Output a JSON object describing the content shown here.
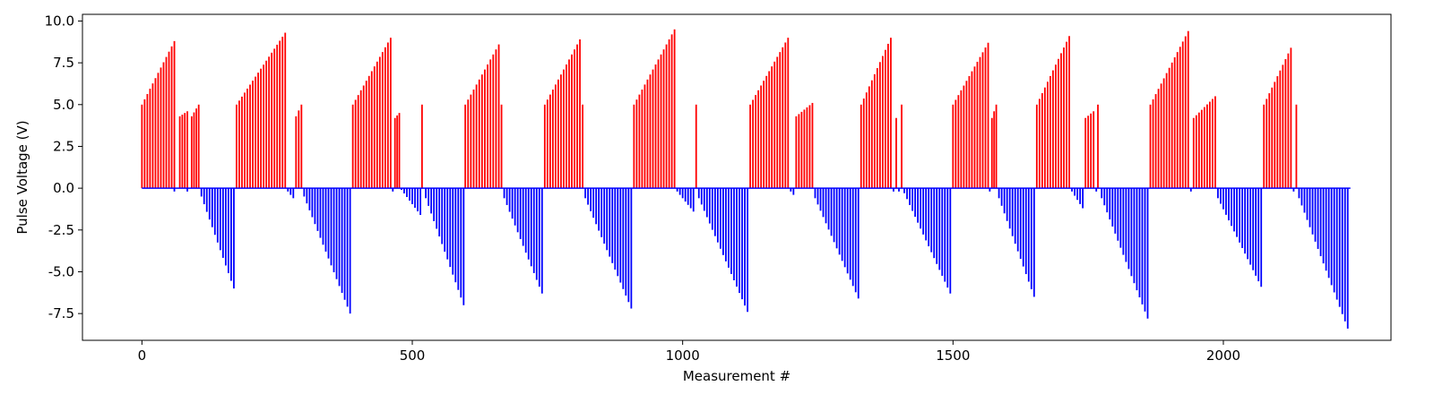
{
  "chart_data": {
    "type": "bar",
    "xlabel": "Measurement #",
    "ylabel": "Pulse Voltage (V)",
    "xlim": [
      -110,
      2310
    ],
    "ylim": [
      -9.1,
      10.4
    ],
    "xticks": [
      0,
      500,
      1000,
      1500,
      2000
    ],
    "yticks": [
      -7.5,
      -5.0,
      -2.5,
      0.0,
      2.5,
      5.0,
      7.5,
      10.0
    ],
    "grid": false,
    "colors": {
      "positive": "#ff0000",
      "negative": "#0000ff"
    },
    "series": [
      {
        "polarity": "positive",
        "segments": [
          {
            "x_start": 0,
            "x_end": 60,
            "v_start": 5.0,
            "v_end": 8.8
          },
          {
            "x_start": 70,
            "x_end": 84,
            "v_start": 4.3,
            "v_end": 4.6
          },
          {
            "x_start": 92,
            "x_end": 105,
            "v_start": 4.3,
            "v_end": 5.0
          },
          {
            "x_start": 175,
            "x_end": 265,
            "v_start": 5.0,
            "v_end": 9.3
          },
          {
            "x_start": 285,
            "x_end": 295,
            "v_start": 4.3,
            "v_end": 5.0
          },
          {
            "x_start": 390,
            "x_end": 460,
            "v_start": 5.0,
            "v_end": 9.0
          },
          {
            "x_start": 468,
            "x_end": 476,
            "v_start": 4.2,
            "v_end": 4.5
          },
          {
            "x_start": 518,
            "x_end": 518,
            "v_start": 5.0,
            "v_end": 5.0
          },
          {
            "x_start": 598,
            "x_end": 660,
            "v_start": 5.0,
            "v_end": 8.6
          },
          {
            "x_start": 665,
            "x_end": 665,
            "v_start": 5.0,
            "v_end": 5.0
          },
          {
            "x_start": 745,
            "x_end": 810,
            "v_start": 5.0,
            "v_end": 8.9
          },
          {
            "x_start": 815,
            "x_end": 815,
            "v_start": 5.0,
            "v_end": 5.0
          },
          {
            "x_start": 910,
            "x_end": 985,
            "v_start": 5.0,
            "v_end": 9.5
          },
          {
            "x_start": 1025,
            "x_end": 1025,
            "v_start": 5.0,
            "v_end": 5.0
          },
          {
            "x_start": 1125,
            "x_end": 1195,
            "v_start": 5.0,
            "v_end": 9.0
          },
          {
            "x_start": 1210,
            "x_end": 1240,
            "v_start": 4.3,
            "v_end": 5.1
          },
          {
            "x_start": 1330,
            "x_end": 1385,
            "v_start": 5.0,
            "v_end": 9.0
          },
          {
            "x_start": 1395,
            "x_end": 1395,
            "v_start": 4.2,
            "v_end": 4.2
          },
          {
            "x_start": 1405,
            "x_end": 1405,
            "v_start": 5.0,
            "v_end": 5.0
          },
          {
            "x_start": 1500,
            "x_end": 1565,
            "v_start": 5.0,
            "v_end": 8.7
          },
          {
            "x_start": 1572,
            "x_end": 1580,
            "v_start": 4.2,
            "v_end": 5.0
          },
          {
            "x_start": 1655,
            "x_end": 1715,
            "v_start": 5.0,
            "v_end": 9.1
          },
          {
            "x_start": 1745,
            "x_end": 1760,
            "v_start": 4.2,
            "v_end": 4.6
          },
          {
            "x_start": 1768,
            "x_end": 1768,
            "v_start": 5.0,
            "v_end": 5.0
          },
          {
            "x_start": 1865,
            "x_end": 1935,
            "v_start": 5.0,
            "v_end": 9.4
          },
          {
            "x_start": 1945,
            "x_end": 1985,
            "v_start": 4.2,
            "v_end": 5.5
          },
          {
            "x_start": 2075,
            "x_end": 2125,
            "v_start": 5.0,
            "v_end": 8.4
          },
          {
            "x_start": 2135,
            "x_end": 2135,
            "v_start": 5.0,
            "v_end": 5.0
          }
        ]
      },
      {
        "polarity": "negative",
        "segments": [
          {
            "x_start": 60,
            "x_end": 60,
            "v_start": -0.2,
            "v_end": -0.2
          },
          {
            "x_start": 84,
            "x_end": 84,
            "v_start": -0.2,
            "v_end": -0.2
          },
          {
            "x_start": 110,
            "x_end": 170,
            "v_start": -0.5,
            "v_end": -6.0
          },
          {
            "x_start": 270,
            "x_end": 280,
            "v_start": -0.2,
            "v_end": -0.6
          },
          {
            "x_start": 300,
            "x_end": 385,
            "v_start": -0.5,
            "v_end": -7.5
          },
          {
            "x_start": 464,
            "x_end": 464,
            "v_start": -0.2,
            "v_end": -0.2
          },
          {
            "x_start": 480,
            "x_end": 515,
            "v_start": -0.1,
            "v_end": -1.6
          },
          {
            "x_start": 525,
            "x_end": 595,
            "v_start": -0.6,
            "v_end": -7.0
          },
          {
            "x_start": 670,
            "x_end": 740,
            "v_start": -0.6,
            "v_end": -6.3
          },
          {
            "x_start": 820,
            "x_end": 905,
            "v_start": -0.6,
            "v_end": -7.2
          },
          {
            "x_start": 990,
            "x_end": 1020,
            "v_start": -0.2,
            "v_end": -1.4
          },
          {
            "x_start": 1030,
            "x_end": 1120,
            "v_start": -0.6,
            "v_end": -7.4
          },
          {
            "x_start": 1200,
            "x_end": 1205,
            "v_start": -0.2,
            "v_end": -0.4
          },
          {
            "x_start": 1245,
            "x_end": 1325,
            "v_start": -0.6,
            "v_end": -6.6
          },
          {
            "x_start": 1390,
            "x_end": 1390,
            "v_start": -0.2,
            "v_end": -0.2
          },
          {
            "x_start": 1400,
            "x_end": 1400,
            "v_start": -0.2,
            "v_end": -0.2
          },
          {
            "x_start": 1410,
            "x_end": 1495,
            "v_start": -0.3,
            "v_end": -6.3
          },
          {
            "x_start": 1568,
            "x_end": 1568,
            "v_start": -0.2,
            "v_end": -0.2
          },
          {
            "x_start": 1585,
            "x_end": 1650,
            "v_start": -0.6,
            "v_end": -6.5
          },
          {
            "x_start": 1720,
            "x_end": 1740,
            "v_start": -0.2,
            "v_end": -1.2
          },
          {
            "x_start": 1765,
            "x_end": 1765,
            "v_start": -0.2,
            "v_end": -0.2
          },
          {
            "x_start": 1775,
            "x_end": 1860,
            "v_start": -0.6,
            "v_end": -7.8
          },
          {
            "x_start": 1940,
            "x_end": 1940,
            "v_start": -0.2,
            "v_end": -0.2
          },
          {
            "x_start": 1990,
            "x_end": 2070,
            "v_start": -0.6,
            "v_end": -5.9
          },
          {
            "x_start": 2130,
            "x_end": 2130,
            "v_start": -0.2,
            "v_end": -0.2
          },
          {
            "x_start": 2140,
            "x_end": 2230,
            "v_start": -0.6,
            "v_end": -8.4
          }
        ]
      }
    ],
    "baseline": {
      "x_start": 0,
      "x_end": 2235,
      "value": 0.0
    }
  }
}
